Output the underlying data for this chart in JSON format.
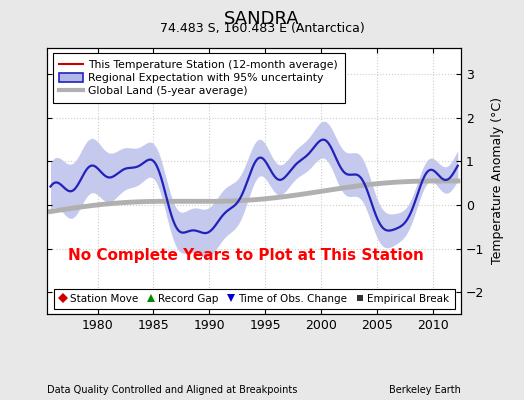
{
  "title": "SANDRA",
  "subtitle": "74.483 S, 160.483 E (Antarctica)",
  "ylabel": "Temperature Anomaly (°C)",
  "xlabel_left": "Data Quality Controlled and Aligned at Breakpoints",
  "xlabel_right": "Berkeley Earth",
  "no_data_text": "No Complete Years to Plot at This Station",
  "xmin": 1975.5,
  "xmax": 2012.5,
  "ymin": -2.5,
  "ymax": 3.6,
  "yticks": [
    -2,
    -1,
    0,
    1,
    2,
    3
  ],
  "xticks": [
    1980,
    1985,
    1990,
    1995,
    2000,
    2005,
    2010
  ],
  "bg_color": "#e8e8e8",
  "plot_bg_color": "#ffffff",
  "regional_band_color": "#b0b8e8",
  "regional_line_color": "#2222bb",
  "global_line_color": "#b0b0b0",
  "station_line_color": "#cc0000",
  "legend_items": [
    {
      "label": "This Temperature Station (12-month average)",
      "color": "#cc0000",
      "lw": 1.5
    },
    {
      "label": "Regional Expectation with 95% uncertainty",
      "color": "#2222bb",
      "lw": 1.8
    },
    {
      "label": "Global Land (5-year average)",
      "color": "#b0b0b0",
      "lw": 3.0
    }
  ],
  "marker_legend": [
    {
      "label": "Station Move",
      "marker": "D",
      "color": "#cc0000"
    },
    {
      "label": "Record Gap",
      "marker": "^",
      "color": "#008800"
    },
    {
      "label": "Time of Obs. Change",
      "marker": "v",
      "color": "#0000cc"
    },
    {
      "label": "Empirical Break",
      "marker": "s",
      "color": "#333333"
    }
  ],
  "seed": 17
}
